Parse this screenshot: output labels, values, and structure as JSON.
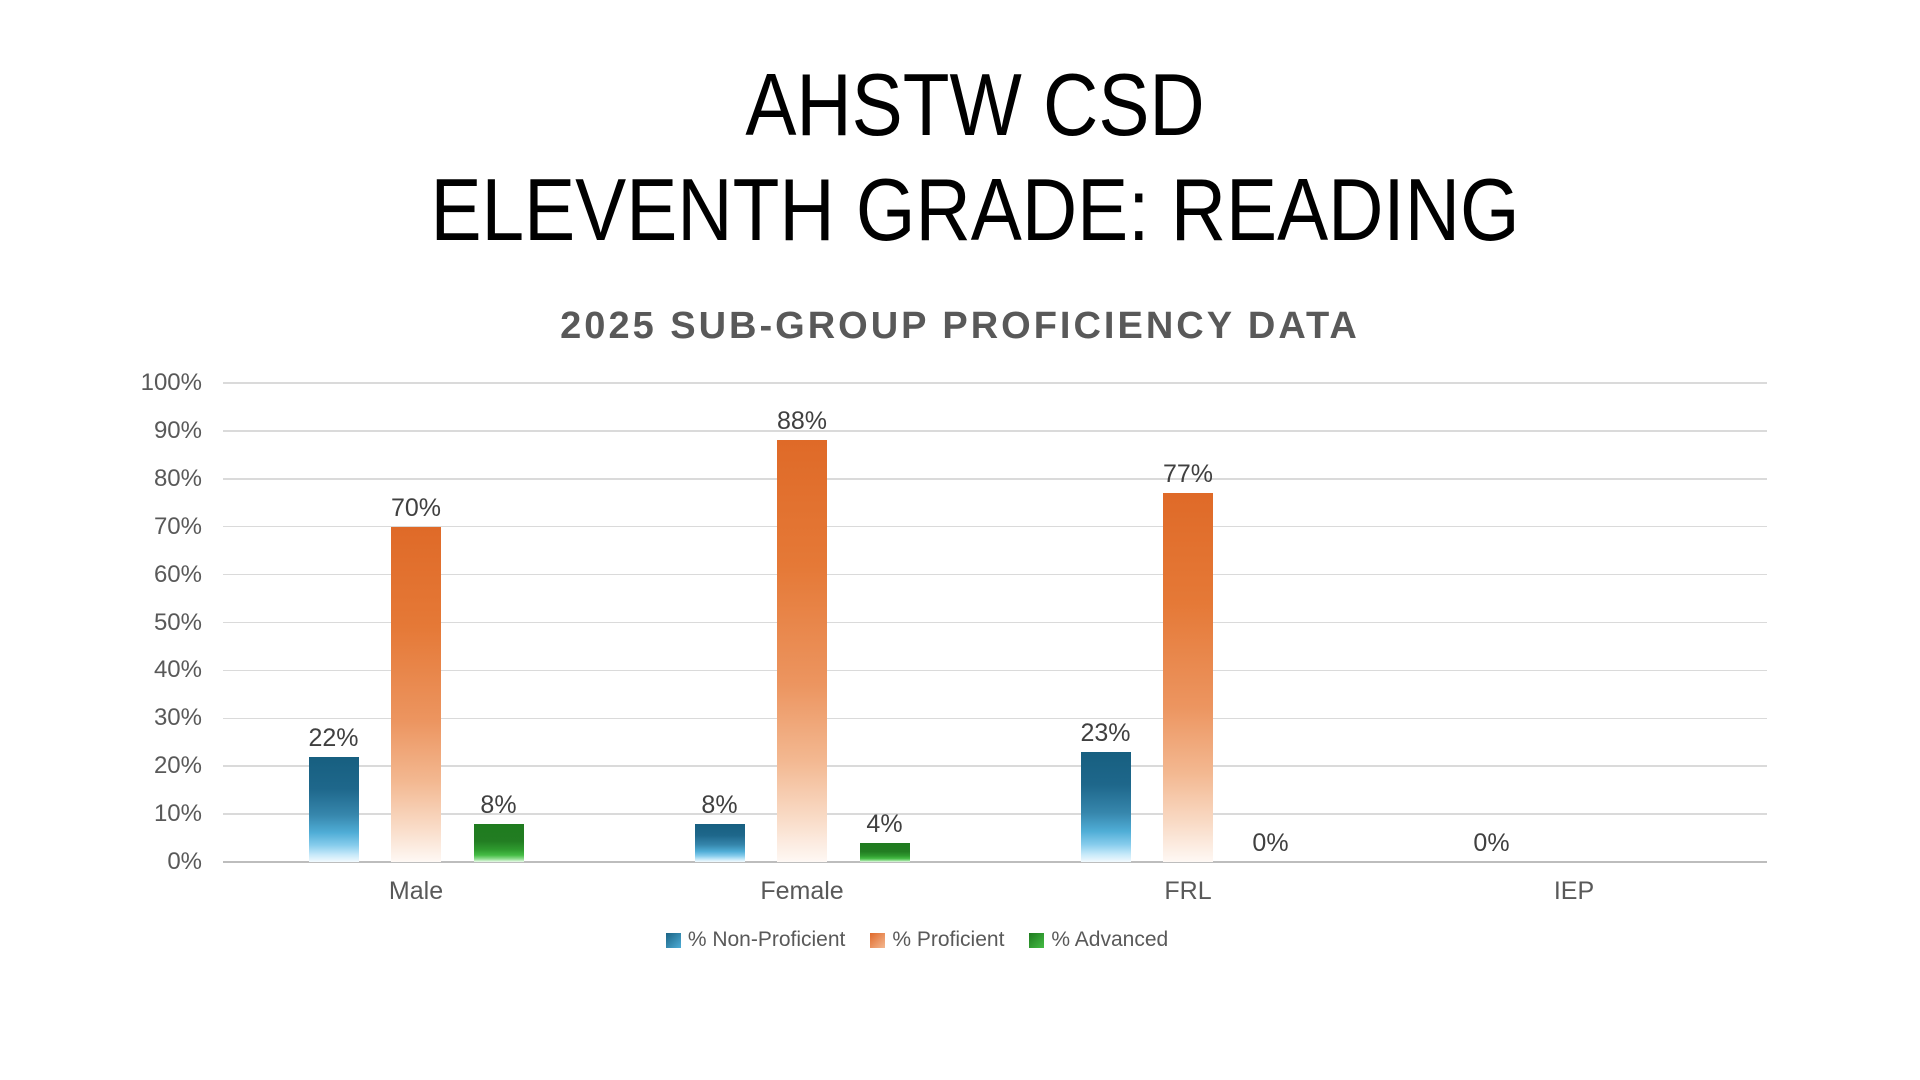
{
  "slide": {
    "background": "#FFFFFF"
  },
  "title": {
    "line1": "AHSTW CSD",
    "line2": "ELEVENTH GRADE: READING",
    "color": "#000000"
  },
  "chart_data": {
    "type": "bar",
    "title": "2025 SUB-GROUP PROFICIENCY DATA",
    "title_color": "#595959",
    "categories": [
      "Male",
      "Female",
      "FRL",
      "IEP"
    ],
    "series": [
      {
        "name": "% Non-Proficient",
        "color": "#1B6384",
        "color_light": "#D9F1FC",
        "values": [
          22,
          8,
          23,
          0
        ],
        "labels": [
          "22%",
          "8%",
          "23%",
          "0%"
        ]
      },
      {
        "name": "% Proficient",
        "color": "#E0692A",
        "color_light": "#FDF6F1",
        "values": [
          70,
          88,
          77,
          null
        ],
        "labels": [
          "70%",
          "88%",
          "77%",
          null
        ]
      },
      {
        "name": "% Advanced",
        "color": "#1F7B1F",
        "color_light": "#D8F5D8",
        "values": [
          8,
          4,
          0,
          null
        ],
        "labels": [
          "8%",
          "4%",
          "0%",
          null
        ]
      }
    ],
    "y_axis": {
      "min": 0,
      "max": 100,
      "step": 10,
      "tick_labels": [
        "100%",
        "90%",
        "80%",
        "70%",
        "60%",
        "50%",
        "40%",
        "30%",
        "20%",
        "10%",
        "0%"
      ],
      "label_color": "#595959"
    },
    "grid": true,
    "gridline_color": "#DADADA",
    "axis_line_color": "#BDBDBD",
    "value_label_color": "#404040",
    "category_label_color": "#595959",
    "legend": {
      "position": "bottom",
      "items": [
        "% Non-Proficient",
        "% Proficient",
        "% Advanced"
      ],
      "text_color": "#595959"
    }
  }
}
